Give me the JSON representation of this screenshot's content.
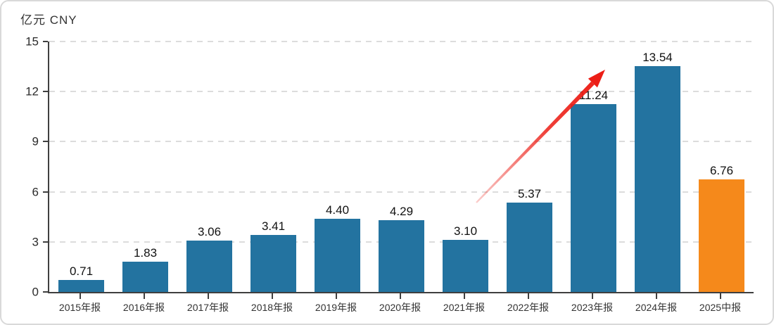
{
  "chart_data": {
    "type": "bar",
    "title": "亿元 CNY",
    "ylabel": "亿元 CNY",
    "xlabel": "",
    "categories": [
      "2015年报",
      "2016年报",
      "2017年报",
      "2018年报",
      "2019年报",
      "2020年报",
      "2021年报",
      "2022年报",
      "2023年报",
      "2024年报",
      "2025中报"
    ],
    "values": [
      0.71,
      1.83,
      3.06,
      3.41,
      4.4,
      4.29,
      3.1,
      5.37,
      11.24,
      13.54,
      6.76
    ],
    "value_labels": [
      "0.71",
      "1.83",
      "3.06",
      "3.41",
      "4.40",
      "4.29",
      "3.10",
      "5.37",
      "11.24",
      "13.54",
      "6.76"
    ],
    "ylim": [
      0,
      15
    ],
    "yticks": [
      0,
      3,
      6,
      9,
      12,
      15
    ],
    "grid": "horizontal-dashed",
    "legend": "none",
    "highlight_index": 10,
    "colors": {
      "bar": "#2373a0",
      "highlight_bar": "#f5891b",
      "arrow": "#ec1e16",
      "axis": "#3f3f3f",
      "gridline": "#dcdcdc",
      "text": "#333333"
    },
    "annotation": {
      "type": "trend-arrow",
      "description": "red upward arrow from above 2021年报 bar toward 2024年报 peak",
      "color": "#ec1e16"
    }
  }
}
